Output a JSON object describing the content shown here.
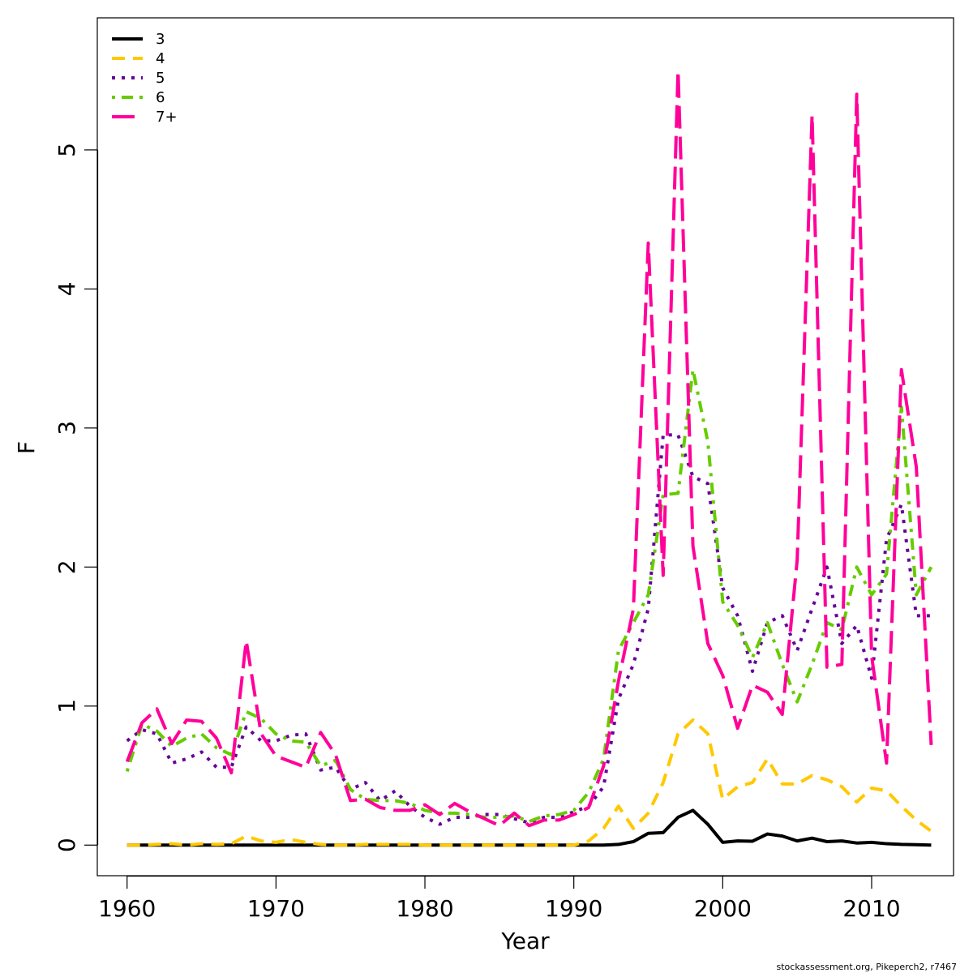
{
  "chart_data": {
    "type": "line",
    "title": "",
    "xlabel": "Year",
    "ylabel": "F",
    "xlim": [
      1958,
      2015.5
    ],
    "ylim": [
      -0.22,
      5.95
    ],
    "xticks": [
      1960,
      1970,
      1980,
      1990,
      2000,
      2010
    ],
    "yticks": [
      0,
      1,
      2,
      3,
      4,
      5
    ],
    "grid": false,
    "legend_position": "top-left",
    "x": [
      1960,
      1961,
      1962,
      1963,
      1964,
      1965,
      1966,
      1967,
      1968,
      1969,
      1970,
      1971,
      1972,
      1973,
      1974,
      1975,
      1976,
      1977,
      1978,
      1979,
      1980,
      1981,
      1982,
      1983,
      1984,
      1985,
      1986,
      1987,
      1988,
      1989,
      1990,
      1991,
      1992,
      1993,
      1994,
      1995,
      1996,
      1997,
      1998,
      1999,
      2000,
      2001,
      2002,
      2003,
      2004,
      2005,
      2006,
      2007,
      2008,
      2009,
      2010,
      2011,
      2012,
      2013,
      2014
    ],
    "series": [
      {
        "name": "3",
        "color": "#000000",
        "dash": "solid",
        "values": [
          0,
          0,
          0,
          0,
          0,
          0,
          0,
          0,
          0,
          0,
          0,
          0,
          0,
          0,
          0,
          0,
          0,
          0,
          0,
          0,
          0,
          0,
          0,
          0,
          0,
          0,
          0,
          0,
          0,
          0,
          0,
          0,
          0,
          0.005,
          0.025,
          0.085,
          0.09,
          0.2,
          0.25,
          0.15,
          0.02,
          0.03,
          0.028,
          0.08,
          0.065,
          0.03,
          0.05,
          0.025,
          0.03,
          0.015,
          0.02,
          0.01,
          0.005,
          0.003,
          0
        ]
      },
      {
        "name": "4",
        "color": "#ffc800",
        "dash": "dashed",
        "values": [
          0,
          0,
          0.005,
          0.01,
          0,
          0.01,
          0.005,
          0.01,
          0.065,
          0.03,
          0.02,
          0.04,
          0.02,
          0.005,
          0,
          0,
          0.005,
          0.005,
          0.005,
          0.005,
          0,
          0,
          0,
          0,
          0,
          0,
          0,
          0,
          0,
          0,
          0,
          0.03,
          0.12,
          0.28,
          0.12,
          0.23,
          0.45,
          0.8,
          0.9,
          0.8,
          0.33,
          0.42,
          0.45,
          0.62,
          0.44,
          0.44,
          0.5,
          0.47,
          0.42,
          0.31,
          0.41,
          0.39,
          0.28,
          0.18,
          0.1
        ]
      },
      {
        "name": "5",
        "color": "#660099",
        "dash": "dotted",
        "values": [
          0.75,
          0.83,
          0.8,
          0.59,
          0.62,
          0.67,
          0.56,
          0.56,
          0.85,
          0.75,
          0.75,
          0.79,
          0.8,
          0.54,
          0.56,
          0.4,
          0.45,
          0.32,
          0.39,
          0.28,
          0.2,
          0.15,
          0.2,
          0.2,
          0.22,
          0.22,
          0.19,
          0.16,
          0.2,
          0.2,
          0.24,
          0.28,
          0.42,
          1.05,
          1.3,
          1.7,
          2.95,
          2.95,
          2.65,
          2.6,
          1.85,
          1.65,
          1.25,
          1.6,
          1.65,
          1.4,
          1.7,
          2.0,
          1.45,
          1.58,
          1.2,
          2.2,
          2.45,
          1.65,
          1.65
        ]
      },
      {
        "name": "6",
        "color": "#66cc00",
        "dash": "dotdash",
        "values": [
          0.53,
          0.87,
          0.82,
          0.71,
          0.77,
          0.8,
          0.7,
          0.65,
          0.96,
          0.91,
          0.8,
          0.75,
          0.74,
          0.57,
          0.61,
          0.4,
          0.33,
          0.32,
          0.32,
          0.3,
          0.25,
          0.23,
          0.23,
          0.22,
          0.2,
          0.2,
          0.21,
          0.17,
          0.21,
          0.22,
          0.25,
          0.38,
          0.62,
          1.4,
          1.6,
          1.8,
          2.52,
          2.53,
          3.42,
          2.9,
          1.75,
          1.58,
          1.35,
          1.6,
          1.3,
          1.03,
          1.3,
          1.6,
          1.55,
          2.0,
          1.8,
          1.95,
          3.15,
          1.8,
          2.0
        ]
      },
      {
        "name": "7+",
        "color": "#ff0099",
        "dash": "longdash",
        "values": [
          0.6,
          0.88,
          0.98,
          0.73,
          0.9,
          0.89,
          0.77,
          0.52,
          1.47,
          0.8,
          0.64,
          0.6,
          0.56,
          0.81,
          0.65,
          0.32,
          0.33,
          0.27,
          0.25,
          0.25,
          0.29,
          0.22,
          0.3,
          0.24,
          0.19,
          0.14,
          0.23,
          0.14,
          0.18,
          0.18,
          0.22,
          0.27,
          0.57,
          1.18,
          1.7,
          4.33,
          1.94,
          5.57,
          2.15,
          1.45,
          1.22,
          0.84,
          1.15,
          1.1,
          0.94,
          2.05,
          5.25,
          1.28,
          1.3,
          5.4,
          1.36,
          0.59,
          3.42,
          2.72,
          0.72
        ]
      }
    ],
    "credit": "stockassessment.org, Pikeperch2, r7467"
  }
}
